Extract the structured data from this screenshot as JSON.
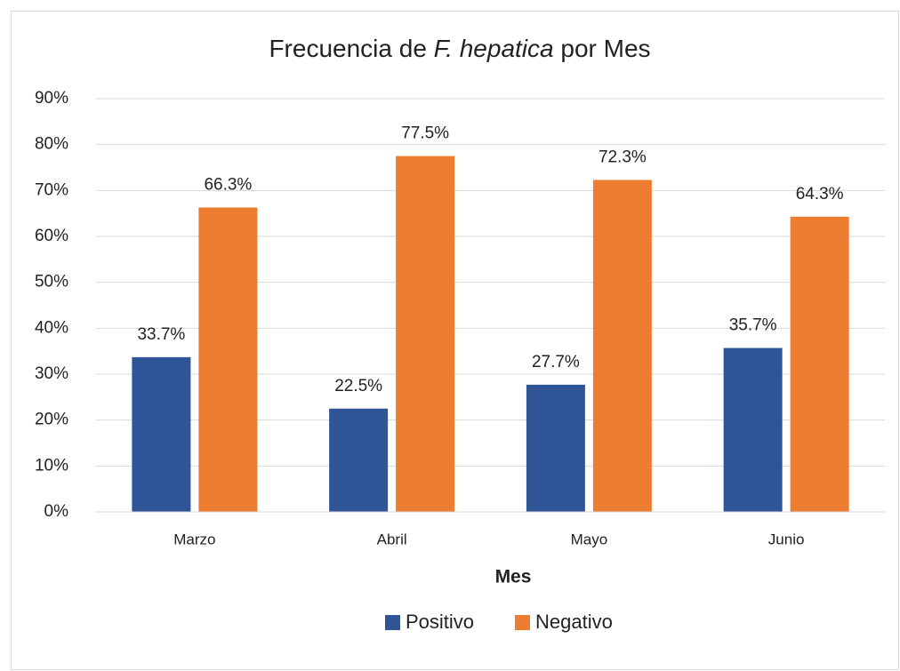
{
  "chart_data": {
    "type": "bar",
    "title": [
      {
        "text": "Frecuencia de "
      },
      {
        "text": "F. hepatica",
        "italic": true
      },
      {
        "text": " por Mes"
      }
    ],
    "x_label": "Mes",
    "categories": [
      "Marzo",
      "Abril",
      "Mayo",
      "Junio"
    ],
    "series": [
      {
        "name": "Positivo",
        "color": "#2f5597",
        "values": [
          33.7,
          22.5,
          27.7,
          35.7
        ],
        "value_labels": [
          "33.7%",
          "22.5%",
          "27.7%",
          "35.7%"
        ]
      },
      {
        "name": "Negativo",
        "color": "#ed7d31",
        "values": [
          66.3,
          77.5,
          72.3,
          64.3
        ],
        "value_labels": [
          "66.3%",
          "77.5%",
          "72.3%",
          "64.3%"
        ]
      }
    ],
    "ylim": [
      0,
      90
    ],
    "yticks": [
      {
        "value": 0,
        "label": "0%"
      },
      {
        "value": 10,
        "label": "10%"
      },
      {
        "value": 20,
        "label": "20%"
      },
      {
        "value": 30,
        "label": "30%"
      },
      {
        "value": 40,
        "label": "40%"
      },
      {
        "value": 50,
        "label": "50%"
      },
      {
        "value": 60,
        "label": "60%"
      },
      {
        "value": 70,
        "label": "70%"
      },
      {
        "value": 80,
        "label": "80%"
      },
      {
        "value": 90,
        "label": "90%"
      }
    ],
    "grid": true,
    "legend": "bottom"
  }
}
